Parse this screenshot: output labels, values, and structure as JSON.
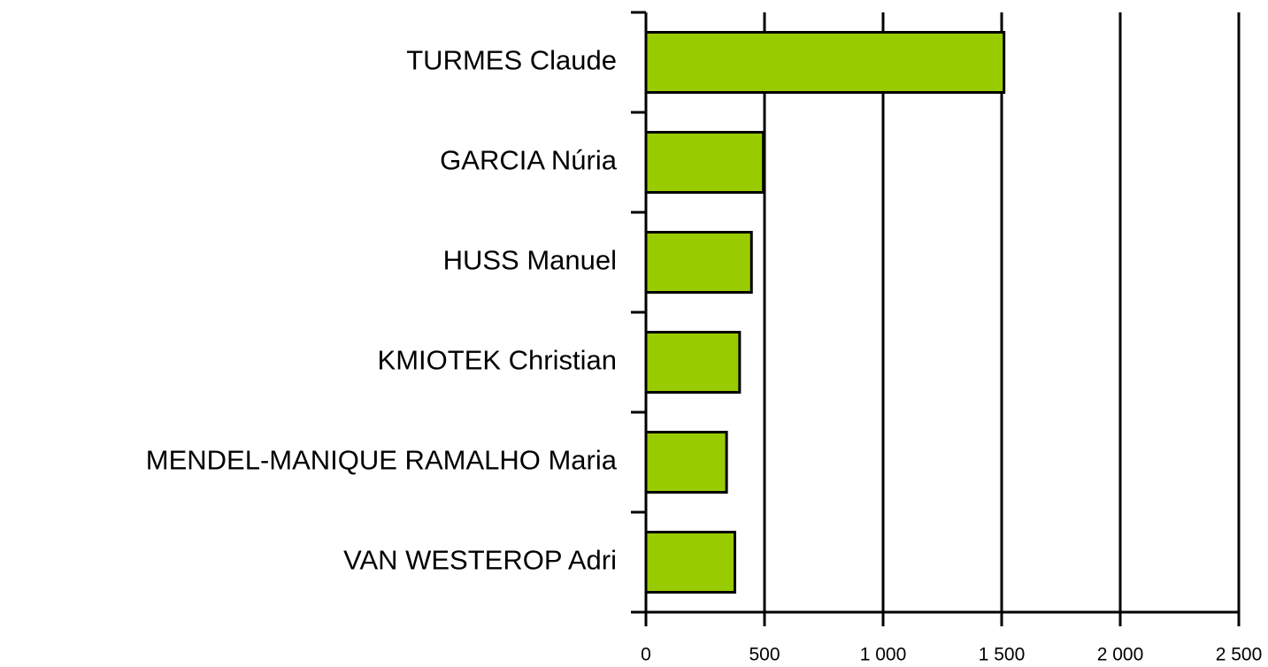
{
  "chart_data": {
    "type": "bar",
    "orientation": "horizontal",
    "categories": [
      "TURMES Claude",
      "GARCIA Núria",
      "HUSS Manuel",
      "KMIOTEK Christian",
      "MENDEL-MANIQUE RAMALHO Maria",
      "VAN WESTEROP Adri"
    ],
    "values": [
      1510,
      495,
      445,
      395,
      340,
      375
    ],
    "color": "#99cc00",
    "xlim": [
      0,
      2500
    ],
    "xticks": [
      0,
      500,
      {
        "value": 1000,
        "label": "1 000"
      },
      {
        "value": 1500,
        "label": "1 500"
      },
      {
        "value": 2000,
        "label": "2 000"
      },
      {
        "value": 2500,
        "label": "2 500"
      }
    ],
    "grid": true
  }
}
